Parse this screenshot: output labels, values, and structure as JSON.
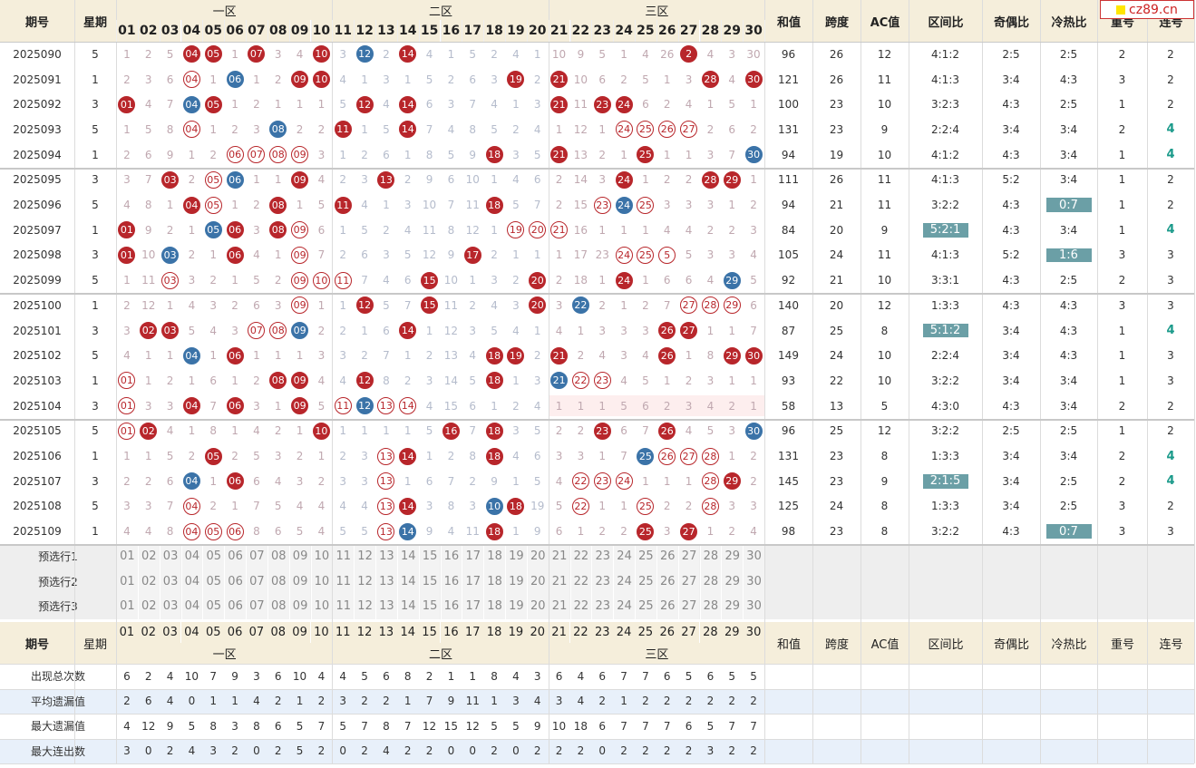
{
  "logo": "cz89.cn",
  "header": {
    "issue": "期号",
    "weekday": "星期",
    "zones": [
      "一区",
      "二区",
      "三区"
    ],
    "numbers": [
      "01",
      "02",
      "03",
      "04",
      "05",
      "06",
      "07",
      "08",
      "09",
      "10",
      "11",
      "12",
      "13",
      "14",
      "15",
      "16",
      "17",
      "18",
      "19",
      "20",
      "21",
      "22",
      "23",
      "24",
      "25",
      "26",
      "27",
      "28",
      "29",
      "30"
    ],
    "stats": [
      "和值",
      "跨度",
      "AC值",
      "区间比",
      "奇偶比",
      "冷热比",
      "重号",
      "连号"
    ]
  },
  "rows": [
    {
      "issue": "2025090",
      "weekday": "5",
      "cells": [
        "1",
        "2",
        "5",
        "04",
        "05",
        "1",
        "07",
        "3",
        "4",
        "10",
        "3",
        "12",
        "2",
        "14",
        "4",
        "1",
        "5",
        "2",
        "4",
        "1",
        "10",
        "9",
        "5",
        "1",
        "4",
        "26",
        "2",
        "4",
        "3",
        "30"
      ],
      "styles": "...rr.r..r.b.r............r...r",
      "stats": [
        "96",
        "26",
        "12",
        "4:1:2",
        "2:5",
        "2:5",
        "2",
        "2"
      ],
      "highlight": [],
      "emphasis": []
    },
    {
      "issue": "2025091",
      "weekday": "1",
      "cells": [
        "2",
        "3",
        "6",
        "04",
        "1",
        "06",
        "1",
        "2",
        "09",
        "10",
        "4",
        "1",
        "3",
        "1",
        "5",
        "2",
        "6",
        "3",
        "19",
        "2",
        "21",
        "10",
        "6",
        "2",
        "5",
        "1",
        "3",
        "28",
        "4",
        "30"
      ],
      "styles": "...o.b..rr........r.r......r.r",
      "stats": [
        "121",
        "26",
        "11",
        "4:1:3",
        "3:4",
        "4:3",
        "3",
        "2"
      ],
      "highlight": [],
      "emphasis": []
    },
    {
      "issue": "2025092",
      "weekday": "3",
      "cells": [
        "01",
        "4",
        "7",
        "04",
        "05",
        "1",
        "2",
        "1",
        "1",
        "1",
        "5",
        "12",
        "4",
        "14",
        "6",
        "3",
        "7",
        "4",
        "1",
        "3",
        "21",
        "11",
        "23",
        "24",
        "6",
        "2",
        "4",
        "1",
        "5",
        "1"
      ],
      "styles": "r..br......r.r......r.rr......",
      "stats": [
        "100",
        "23",
        "10",
        "3:2:3",
        "4:3",
        "2:5",
        "1",
        "2"
      ],
      "highlight": [],
      "emphasis": []
    },
    {
      "issue": "2025093",
      "weekday": "5",
      "cells": [
        "1",
        "5",
        "8",
        "04",
        "1",
        "2",
        "3",
        "08",
        "2",
        "2",
        "11",
        "1",
        "5",
        "14",
        "7",
        "4",
        "8",
        "5",
        "2",
        "4",
        "1",
        "12",
        "1",
        "24",
        "25",
        "26",
        "27",
        "2",
        "6",
        "2"
      ],
      "styles": "...o...b..r..r.........oooo...",
      "stats": [
        "131",
        "23",
        "9",
        "2:2:4",
        "3:4",
        "3:4",
        "2",
        "4"
      ],
      "highlight": [],
      "emphasis": [
        7
      ]
    },
    {
      "issue": "2025094",
      "weekday": "1",
      "cells": [
        "2",
        "6",
        "9",
        "1",
        "2",
        "06",
        "07",
        "08",
        "09",
        "3",
        "1",
        "2",
        "6",
        "1",
        "8",
        "5",
        "9",
        "18",
        "3",
        "5",
        "21",
        "13",
        "2",
        "1",
        "25",
        "1",
        "1",
        "3",
        "7",
        "30"
      ],
      "styles": ".....oooo........r..r...r....b",
      "stats": [
        "94",
        "19",
        "10",
        "4:1:2",
        "4:3",
        "3:4",
        "1",
        "4"
      ],
      "highlight": [],
      "emphasis": [
        7
      ]
    },
    {
      "issue": "2025095",
      "weekday": "3",
      "cells": [
        "3",
        "7",
        "03",
        "2",
        "05",
        "06",
        "1",
        "1",
        "09",
        "4",
        "2",
        "3",
        "13",
        "2",
        "9",
        "6",
        "10",
        "1",
        "4",
        "6",
        "2",
        "14",
        "3",
        "24",
        "1",
        "2",
        "2",
        "28",
        "29",
        "1"
      ],
      "styles": "..r.ob..r...r..........r...rr.",
      "stats": [
        "111",
        "26",
        "11",
        "4:1:3",
        "5:2",
        "3:4",
        "1",
        "2"
      ],
      "highlight": [],
      "emphasis": []
    },
    {
      "issue": "2025096",
      "weekday": "5",
      "cells": [
        "4",
        "8",
        "1",
        "04",
        "05",
        "1",
        "2",
        "08",
        "1",
        "5",
        "11",
        "4",
        "1",
        "3",
        "10",
        "7",
        "11",
        "18",
        "5",
        "7",
        "2",
        "15",
        "23",
        "24",
        "25",
        "3",
        "3",
        "3",
        "1",
        "2"
      ],
      "styles": "...ro..r..r......r....obo.....",
      "stats": [
        "94",
        "21",
        "11",
        "3:2:2",
        "4:3",
        "0:7",
        "1",
        "2"
      ],
      "highlight": [
        5
      ],
      "emphasis": []
    },
    {
      "issue": "2025097",
      "weekday": "1",
      "cells": [
        "01",
        "9",
        "2",
        "1",
        "05",
        "06",
        "3",
        "08",
        "09",
        "6",
        "1",
        "5",
        "2",
        "4",
        "11",
        "8",
        "12",
        "1",
        "19",
        "20",
        "21",
        "16",
        "1",
        "1",
        "1",
        "4",
        "4",
        "2",
        "2",
        "3"
      ],
      "styles": "r...br.ro.........ooo.........",
      "stats": [
        "84",
        "20",
        "9",
        "5:2:1",
        "4:3",
        "3:4",
        "1",
        "4"
      ],
      "highlight": [
        3
      ],
      "emphasis": [
        7
      ]
    },
    {
      "issue": "2025098",
      "weekday": "3",
      "cells": [
        "01",
        "10",
        "03",
        "2",
        "1",
        "06",
        "4",
        "1",
        "09",
        "7",
        "2",
        "6",
        "3",
        "5",
        "12",
        "9",
        "17",
        "2",
        "1",
        "1",
        "1",
        "17",
        "23",
        "24",
        "25",
        "5",
        "5",
        "3",
        "3",
        "4"
      ],
      "styles": "r.b..r..o.......r......ooo.....",
      "stats": [
        "105",
        "24",
        "11",
        "4:1:3",
        "5:2",
        "1:6",
        "3",
        "3"
      ],
      "highlight": [
        5
      ],
      "emphasis": []
    },
    {
      "issue": "2025099",
      "weekday": "5",
      "cells": [
        "1",
        "11",
        "03",
        "3",
        "2",
        "1",
        "5",
        "2",
        "09",
        "10",
        "11",
        "7",
        "4",
        "6",
        "15",
        "10",
        "1",
        "3",
        "2",
        "20",
        "2",
        "18",
        "1",
        "24",
        "1",
        "6",
        "6",
        "4",
        "29",
        "5"
      ],
      "styles": "..o.....ooo...r....r...r....b.",
      "stats": [
        "92",
        "21",
        "10",
        "3:3:1",
        "4:3",
        "2:5",
        "2",
        "3"
      ],
      "highlight": [],
      "emphasis": []
    },
    {
      "issue": "2025100",
      "weekday": "1",
      "cells": [
        "2",
        "12",
        "1",
        "4",
        "3",
        "2",
        "6",
        "3",
        "09",
        "1",
        "1",
        "12",
        "5",
        "7",
        "15",
        "11",
        "2",
        "4",
        "3",
        "20",
        "3",
        "22",
        "2",
        "1",
        "2",
        "7",
        "27",
        "28",
        "29",
        "6"
      ],
      "styles": "........o..r..r....r.b....ooo.",
      "stats": [
        "140",
        "20",
        "12",
        "1:3:3",
        "4:3",
        "4:3",
        "3",
        "3"
      ],
      "highlight": [],
      "emphasis": []
    },
    {
      "issue": "2025101",
      "weekday": "3",
      "cells": [
        "3",
        "02",
        "03",
        "5",
        "4",
        "3",
        "07",
        "08",
        "09",
        "2",
        "2",
        "1",
        "6",
        "14",
        "1",
        "12",
        "3",
        "5",
        "4",
        "1",
        "4",
        "1",
        "3",
        "3",
        "3",
        "26",
        "27",
        "1",
        "1",
        "7"
      ],
      "styles": ".rr...oob....r...........rr...",
      "stats": [
        "87",
        "25",
        "8",
        "5:1:2",
        "3:4",
        "4:3",
        "1",
        "4"
      ],
      "highlight": [
        3
      ],
      "emphasis": [
        7
      ]
    },
    {
      "issue": "2025102",
      "weekday": "5",
      "cells": [
        "4",
        "1",
        "1",
        "04",
        "1",
        "06",
        "1",
        "1",
        "1",
        "3",
        "3",
        "2",
        "7",
        "1",
        "2",
        "13",
        "4",
        "18",
        "19",
        "2",
        "21",
        "2",
        "4",
        "3",
        "4",
        "26",
        "1",
        "8",
        "29",
        "30"
      ],
      "styles": "...b.r...........rr.r....r..rr",
      "stats": [
        "149",
        "24",
        "10",
        "2:2:4",
        "3:4",
        "4:3",
        "1",
        "3"
      ],
      "highlight": [],
      "emphasis": []
    },
    {
      "issue": "2025103",
      "weekday": "1",
      "cells": [
        "01",
        "1",
        "2",
        "1",
        "6",
        "1",
        "2",
        "08",
        "09",
        "4",
        "4",
        "12",
        "8",
        "2",
        "3",
        "14",
        "5",
        "18",
        "1",
        "3",
        "21",
        "22",
        "23",
        "4",
        "5",
        "1",
        "2",
        "3",
        "1",
        "1"
      ],
      "styles": "o......rr..r.....r..boo.......",
      "stats": [
        "93",
        "22",
        "10",
        "3:2:2",
        "3:4",
        "3:4",
        "1",
        "3"
      ],
      "highlight": [],
      "emphasis": []
    },
    {
      "issue": "2025104",
      "weekday": "3",
      "cells": [
        "01",
        "3",
        "3",
        "04",
        "7",
        "06",
        "3",
        "1",
        "09",
        "5",
        "11",
        "12",
        "13",
        "14",
        "4",
        "15",
        "6",
        "1",
        "2",
        "4",
        "1",
        "1",
        "1",
        "5",
        "6",
        "2",
        "3",
        "4",
        "2",
        "1"
      ],
      "styles": "o..r.r..r.oboo................",
      "stats": [
        "58",
        "13",
        "5",
        "4:3:0",
        "4:3",
        "3:4",
        "2",
        "2"
      ],
      "highlight": [],
      "emphasis": [],
      "shade": 2
    },
    {
      "issue": "2025105",
      "weekday": "5",
      "cells": [
        "01",
        "02",
        "4",
        "1",
        "8",
        "1",
        "4",
        "2",
        "1",
        "10",
        "1",
        "1",
        "1",
        "1",
        "5",
        "16",
        "7",
        "18",
        "3",
        "5",
        "2",
        "2",
        "23",
        "6",
        "7",
        "26",
        "4",
        "5",
        "3",
        "30"
      ],
      "styles": "or.......r.....r.r....r..r...b",
      "stats": [
        "96",
        "25",
        "12",
        "3:2:2",
        "2:5",
        "2:5",
        "1",
        "2"
      ],
      "highlight": [],
      "emphasis": []
    },
    {
      "issue": "2025106",
      "weekday": "1",
      "cells": [
        "1",
        "1",
        "5",
        "2",
        "05",
        "2",
        "5",
        "3",
        "2",
        "1",
        "2",
        "3",
        "13",
        "14",
        "1",
        "2",
        "8",
        "18",
        "4",
        "6",
        "3",
        "3",
        "1",
        "7",
        "25",
        "26",
        "27",
        "28",
        "1",
        "2"
      ],
      "styles": "....r.......or...r......booo..",
      "stats": [
        "131",
        "23",
        "8",
        "1:3:3",
        "3:4",
        "3:4",
        "2",
        "4"
      ],
      "highlight": [],
      "emphasis": [
        7
      ]
    },
    {
      "issue": "2025107",
      "weekday": "3",
      "cells": [
        "2",
        "2",
        "6",
        "04",
        "1",
        "06",
        "6",
        "4",
        "3",
        "2",
        "3",
        "3",
        "13",
        "1",
        "6",
        "7",
        "2",
        "9",
        "1",
        "5",
        "4",
        "22",
        "23",
        "24",
        "1",
        "1",
        "1",
        "28",
        "29",
        "2"
      ],
      "styles": "...b.r......o........ooo...or.",
      "stats": [
        "145",
        "23",
        "9",
        "2:1:5",
        "3:4",
        "2:5",
        "2",
        "4"
      ],
      "highlight": [
        3
      ],
      "emphasis": [
        7
      ]
    },
    {
      "issue": "2025108",
      "weekday": "5",
      "cells": [
        "3",
        "3",
        "7",
        "04",
        "2",
        "1",
        "7",
        "5",
        "4",
        "4",
        "4",
        "4",
        "13",
        "14",
        "3",
        "8",
        "3",
        "10",
        "18",
        "19",
        "5",
        "22",
        "1",
        "1",
        "25",
        "2",
        "2",
        "28",
        "3",
        "3"
      ],
      "styles": "...o........or...br..o..o..o..",
      "stats": [
        "125",
        "24",
        "8",
        "1:3:3",
        "3:4",
        "2:5",
        "3",
        "2"
      ],
      "highlight": [],
      "emphasis": []
    },
    {
      "issue": "2025109",
      "weekday": "1",
      "cells": [
        "4",
        "4",
        "8",
        "04",
        "05",
        "06",
        "8",
        "6",
        "5",
        "4",
        "5",
        "5",
        "13",
        "14",
        "9",
        "4",
        "11",
        "18",
        "1",
        "9",
        "6",
        "1",
        "2",
        "2",
        "25",
        "3",
        "27",
        "1",
        "2",
        "4"
      ],
      "styles": "...ooo......ob...r......r.r...",
      "stats": [
        "98",
        "23",
        "8",
        "3:2:2",
        "4:3",
        "0:7",
        "3",
        "3"
      ],
      "highlight": [
        5
      ],
      "emphasis": []
    }
  ],
  "preselect": [
    "预选行1",
    "预选行2",
    "预选行3"
  ],
  "summary": [
    {
      "label": "出现总次数",
      "values": [
        "6",
        "2",
        "4",
        "10",
        "7",
        "9",
        "3",
        "6",
        "10",
        "4",
        "4",
        "5",
        "6",
        "8",
        "2",
        "1",
        "1",
        "8",
        "4",
        "3",
        "6",
        "4",
        "6",
        "7",
        "7",
        "6",
        "5",
        "6",
        "5",
        "5"
      ]
    },
    {
      "label": "平均遗漏值",
      "values": [
        "2",
        "6",
        "4",
        "0",
        "1",
        "1",
        "4",
        "2",
        "1",
        "2",
        "3",
        "2",
        "2",
        "1",
        "7",
        "9",
        "11",
        "1",
        "3",
        "4",
        "3",
        "4",
        "2",
        "1",
        "2",
        "2",
        "2",
        "2",
        "2",
        "2"
      ]
    },
    {
      "label": "最大遗漏值",
      "values": [
        "4",
        "12",
        "9",
        "5",
        "8",
        "3",
        "8",
        "6",
        "5",
        "7",
        "5",
        "7",
        "8",
        "7",
        "12",
        "15",
        "12",
        "5",
        "5",
        "9",
        "10",
        "18",
        "6",
        "7",
        "7",
        "7",
        "6",
        "5",
        "7",
        "7"
      ]
    },
    {
      "label": "最大连出数",
      "values": [
        "3",
        "0",
        "2",
        "4",
        "3",
        "2",
        "0",
        "2",
        "5",
        "2",
        "0",
        "2",
        "4",
        "2",
        "2",
        "0",
        "0",
        "2",
        "0",
        "2",
        "2",
        "2",
        "0",
        "2",
        "2",
        "2",
        "2",
        "3",
        "2",
        "2"
      ]
    }
  ]
}
